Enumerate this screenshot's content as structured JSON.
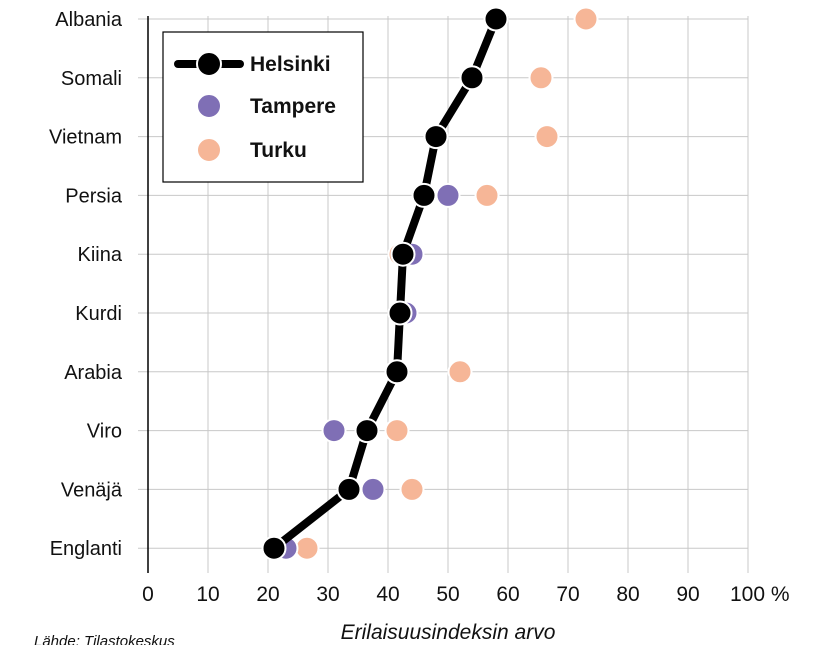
{
  "chart_data": {
    "type": "scatter",
    "categories": [
      "Albania",
      "Somali",
      "Vietnam",
      "Persia",
      "Kiina",
      "Kurdi",
      "Arabia",
      "Viro",
      "Venäjä",
      "Englanti"
    ],
    "series": [
      {
        "name": "Helsinki",
        "color": "#000000",
        "style": "line-with-markers",
        "values": [
          58,
          54,
          48,
          46,
          42.5,
          42,
          41.5,
          36.5,
          33.5,
          21
        ]
      },
      {
        "name": "Tampere",
        "color": "#7f6fb5",
        "style": "markers",
        "values": [
          null,
          null,
          null,
          50,
          44,
          43,
          null,
          31,
          37.5,
          23
        ]
      },
      {
        "name": "Turku",
        "color": "#f6b697",
        "style": "markers",
        "values": [
          73,
          65.5,
          66.5,
          56.5,
          42,
          null,
          52,
          41.5,
          44,
          26.5
        ]
      }
    ],
    "xlim": [
      0,
      100
    ],
    "xticks": [
      "0",
      "10",
      "20",
      "30",
      "40",
      "50",
      "60",
      "70",
      "80",
      "90",
      "100 %"
    ],
    "xlabel": "Erilaisuusindeksin arvo",
    "source": "Lähde: Tilastokeskus",
    "grid": true,
    "legend_position": "top-left"
  }
}
